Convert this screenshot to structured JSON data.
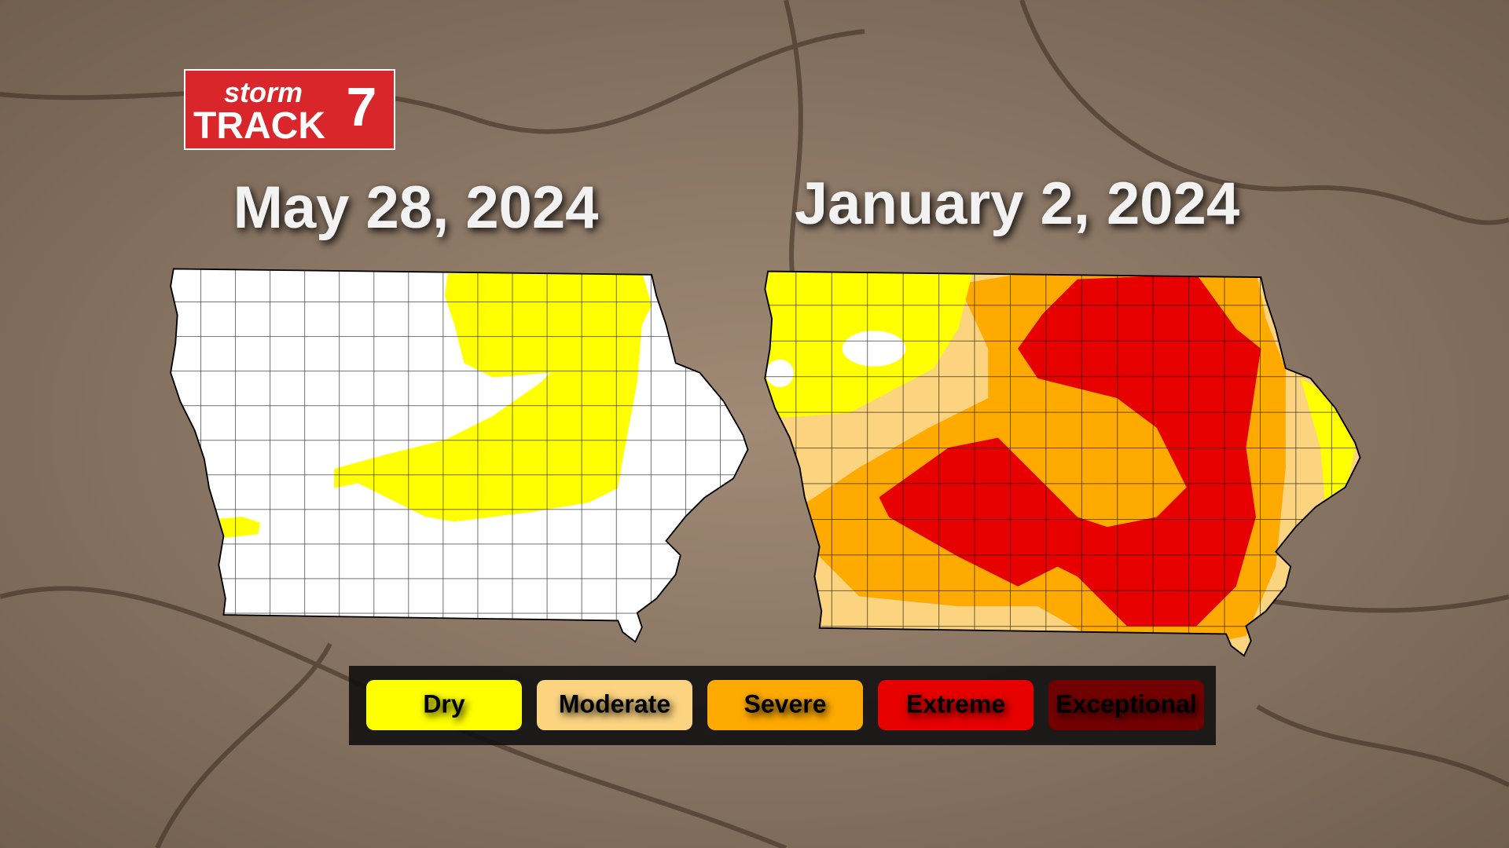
{
  "logo": {
    "line1": "storm",
    "line2": "TRACK",
    "number": "7"
  },
  "maps": [
    {
      "title": "May 28, 2024"
    },
    {
      "title": "January 2, 2024"
    }
  ],
  "legend": [
    {
      "label": "Dry",
      "color": "#ffff00"
    },
    {
      "label": "Moderate",
      "color": "#fcd37f"
    },
    {
      "label": "Severe",
      "color": "#ffaa00"
    },
    {
      "label": "Extreme",
      "color": "#e60000"
    },
    {
      "label": "Exceptional",
      "color": "#730000"
    }
  ]
}
